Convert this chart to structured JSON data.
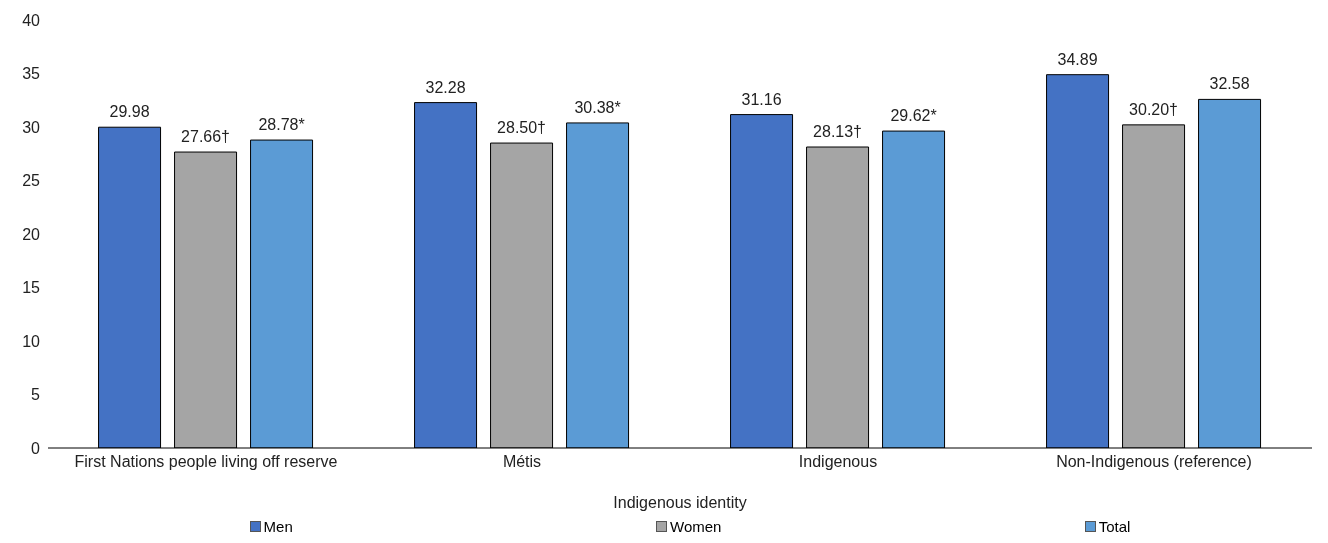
{
  "chart_data": {
    "type": "bar",
    "xlabel": "Indigenous identity",
    "categories": [
      "First Nations people living off reserve",
      "Métis",
      "Indigenous",
      "Non-Indigenous (reference)"
    ],
    "series": [
      {
        "name": "Men",
        "color": "#4472c4",
        "values": [
          29.98,
          32.28,
          31.16,
          34.89
        ],
        "value_labels": [
          "29.98",
          "32.28",
          "31.16",
          "34.89"
        ]
      },
      {
        "name": "Women",
        "color": "#a5a5a5",
        "values": [
          27.66,
          28.5,
          28.13,
          30.2
        ],
        "value_labels": [
          "27.66†",
          "28.50†",
          "28.13†",
          "30.20†"
        ]
      },
      {
        "name": "Total",
        "color": "#5b9bd5",
        "values": [
          28.78,
          30.38,
          29.62,
          32.58
        ],
        "value_labels": [
          "28.78*",
          "30.38*",
          "29.62*",
          "32.58"
        ]
      }
    ],
    "ylim": [
      0,
      40
    ],
    "yticks": [
      0,
      5,
      10,
      15,
      20,
      25,
      30,
      35,
      40
    ],
    "grid": false,
    "legend": "bottom"
  }
}
